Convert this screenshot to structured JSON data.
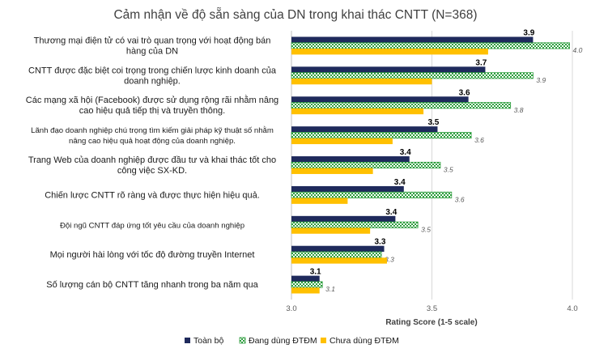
{
  "chart_data": {
    "type": "bar",
    "orientation": "horizontal",
    "title": "Cảm nhận về độ sẵn sàng của DN trong khai thác CNTT (N=368)",
    "xlabel": "Rating Score (1-5 scale)",
    "xlim": [
      3.0,
      4.0
    ],
    "xticks": [
      "3.0",
      "3.5",
      "4.0"
    ],
    "categories": [
      [
        "Thương mại điện tử có vai trò quan trọng với hoạt động bán",
        "hàng của DN"
      ],
      [
        "CNTT được đặc biệt coi trọng trong chiến lược kinh doanh của",
        "doanh nghiệp."
      ],
      [
        "Các mạng xã hội (Facebook) được sử dụng rộng rãi nhằm nâng",
        "cao hiệu quả tiếp thị và truyền thông."
      ],
      [
        "Lãnh đạo doanh nghiệp chú trọng tìm kiếm giải pháp kỹ thuật số nhằm",
        "nâng cao hiệu quả hoạt động của doanh nghiệp."
      ],
      [
        "Trang Web của doanh nghiệp được đầu tư và khai thác tốt cho",
        "công việc SX-KD."
      ],
      [
        "Chiến lược CNTT rõ ràng và được thực hiện hiệu quả."
      ],
      [
        "Đội ngũ CNTT đáp ứng tốt yêu cầu của doanh nghiệp"
      ],
      [
        "Mọi người hài lòng với tốc độ đường truyền Internet"
      ],
      [
        "Số lượng cán bộ CNTT tăng nhanh trong ba năm qua"
      ]
    ],
    "small_label_rows": [
      3,
      6
    ],
    "series": [
      {
        "name": "Toàn bộ",
        "color": "#1f2a5c",
        "pattern": "solid",
        "values": [
          3.86,
          3.69,
          3.63,
          3.52,
          3.42,
          3.4,
          3.37,
          3.33,
          3.1
        ],
        "labels": [
          "3.9",
          "3.7",
          "3.6",
          "3.5",
          "3.4",
          "3.4",
          "3.4",
          "3.3",
          "3.1"
        ]
      },
      {
        "name": "Đang dùng ĐTĐM",
        "color": "#2e9e3e",
        "pattern": "checker",
        "values": [
          3.99,
          3.86,
          3.78,
          3.64,
          3.53,
          3.57,
          3.45,
          3.32,
          3.11
        ],
        "labels": [
          "4.0",
          "3.9",
          "3.8",
          "3.6",
          "3.5",
          "3.6",
          "3.5",
          "3.3",
          "3.1"
        ]
      },
      {
        "name": "Chưa dùng ĐTĐM",
        "color": "#ffc000",
        "pattern": "solid",
        "values": [
          3.7,
          3.5,
          3.47,
          3.36,
          3.29,
          3.2,
          3.28,
          3.34,
          3.1
        ]
      }
    ],
    "legend_position": "bottom",
    "grid": "vertical"
  }
}
